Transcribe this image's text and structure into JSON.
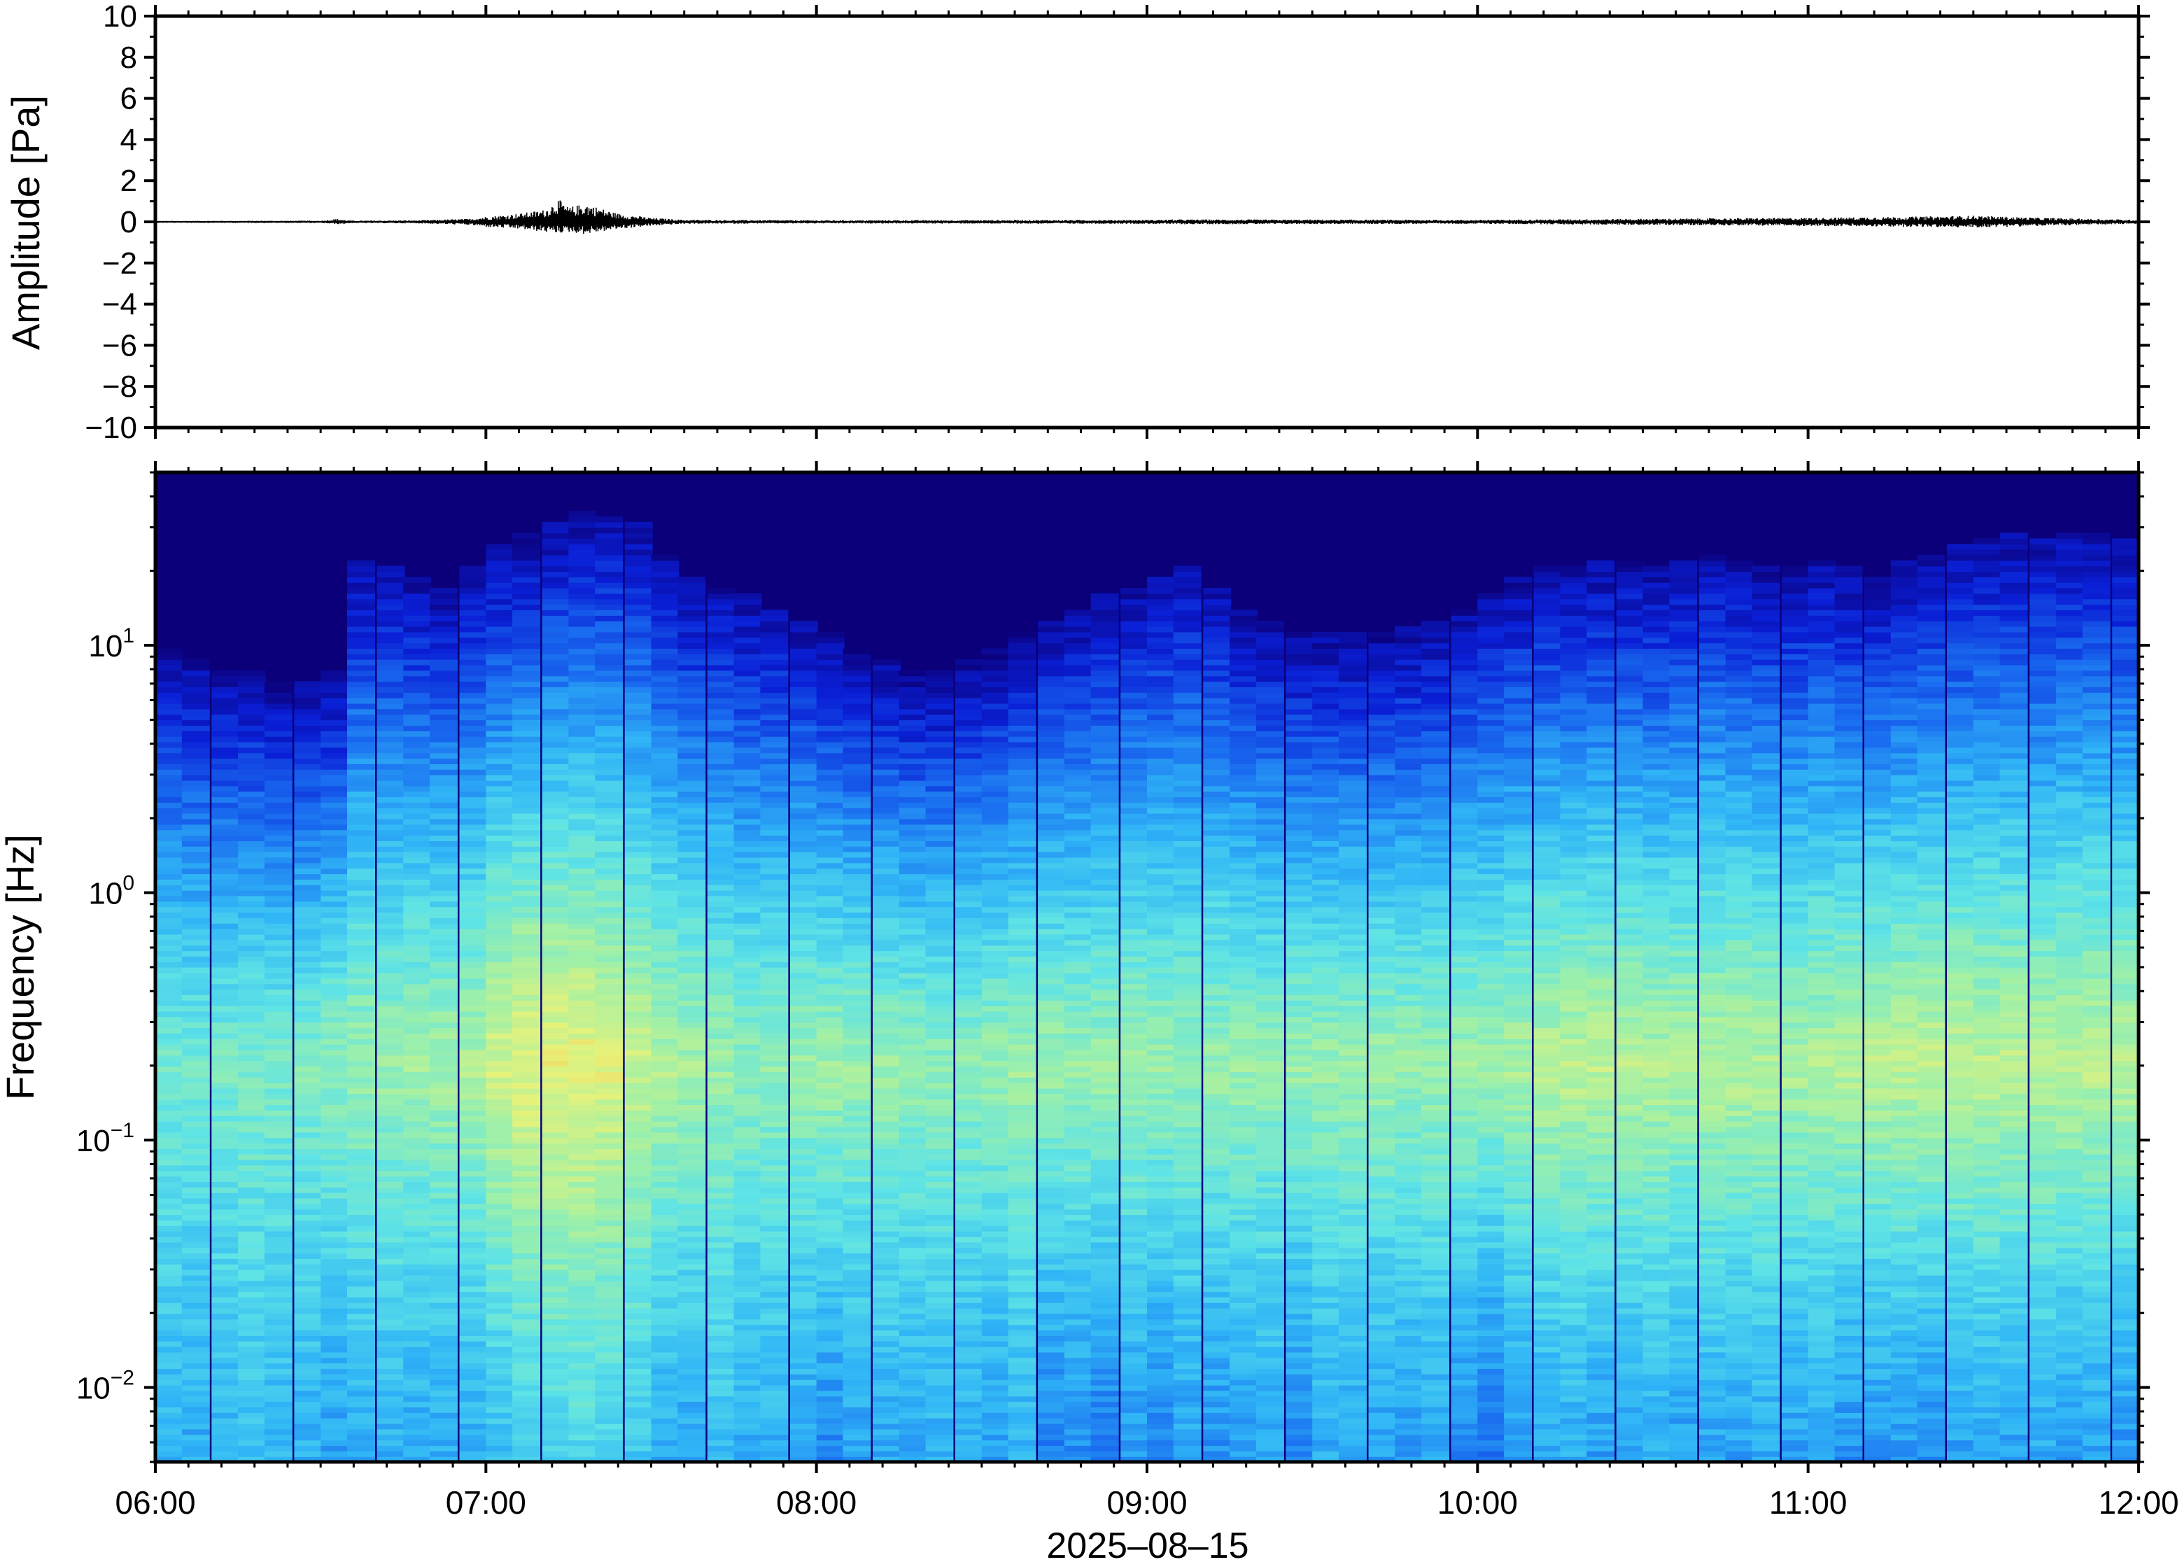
{
  "chart_data": [
    {
      "type": "line",
      "ylabel": "Amplitude [Pa]",
      "ylim": [
        -10,
        10
      ],
      "yticks": [
        10,
        8,
        6,
        4,
        2,
        0,
        -2,
        -4,
        -6,
        -8,
        -10
      ],
      "ytick_labels": [
        "10",
        "8",
        "6",
        "4",
        "2",
        "0",
        "−2",
        "−4",
        "−6",
        "−8",
        "−10"
      ],
      "xlim": [
        "2025-08-15 06:00",
        "2025-08-15 12:00"
      ],
      "series": [
        {
          "color": "#000000",
          "envelope": {
            "time_hours": [
              6.0,
              6.5,
              6.55,
              6.57,
              6.6,
              6.8,
              6.95,
              7.0,
              7.1,
              7.18,
              7.22,
              7.25,
              7.3,
              7.4,
              7.5,
              7.6,
              8.0,
              9.0,
              9.1,
              10.0,
              10.5,
              11.0,
              11.3,
              11.5,
              11.7,
              12.0
            ],
            "max_pa": [
              0.05,
              0.06,
              0.15,
              0.1,
              0.06,
              0.08,
              0.15,
              0.25,
              0.4,
              0.6,
              1.1,
              0.7,
              0.9,
              0.4,
              0.2,
              0.1,
              0.08,
              0.1,
              0.12,
              0.1,
              0.15,
              0.2,
              0.25,
              0.3,
              0.2,
              0.1
            ],
            "min_pa": [
              -0.05,
              -0.06,
              -0.12,
              -0.1,
              -0.06,
              -0.08,
              -0.15,
              -0.25,
              -0.35,
              -0.5,
              -0.55,
              -0.5,
              -0.6,
              -0.35,
              -0.2,
              -0.1,
              -0.08,
              -0.1,
              -0.12,
              -0.1,
              -0.15,
              -0.2,
              -0.25,
              -0.28,
              -0.2,
              -0.1
            ]
          }
        }
      ]
    },
    {
      "type": "heatmap",
      "ylabel": "Frequency [Hz]",
      "xlabel": "2025–08–15",
      "yscale": "log",
      "ylim_hz": [
        0.005,
        50
      ],
      "yticks_hz": [
        10,
        1,
        0.1,
        0.01
      ],
      "ytick_labels": [
        {
          "base": "10",
          "exp": "1"
        },
        {
          "base": "10",
          "exp": "0"
        },
        {
          "base": "10",
          "exp": "−1"
        },
        {
          "base": "10",
          "exp": "−2"
        }
      ],
      "x_ticks": [
        "06:00",
        "07:00",
        "08:00",
        "09:00",
        "10:00",
        "11:00",
        "12:00"
      ],
      "xlim": [
        "2025-08-15 06:00",
        "2025-08-15 12:00"
      ],
      "colormap": [
        "#0b007a",
        "#0a1fd6",
        "#1a6df0",
        "#30b6f6",
        "#5ee3e6",
        "#9ef0a8",
        "#e6f27a",
        "#f8c250",
        "#f08a3a"
      ],
      "colorscale_range_db": [
        0,
        100
      ],
      "time_columns_hours": [
        6.0,
        6.08,
        6.17,
        6.25,
        6.33,
        6.42,
        6.5,
        6.58,
        6.67,
        6.75,
        6.83,
        6.92,
        7.0,
        7.08,
        7.17,
        7.25,
        7.33,
        7.42,
        7.5,
        7.58,
        7.67,
        7.75,
        7.83,
        7.92,
        8.0,
        8.08,
        8.17,
        8.25,
        8.33,
        8.42,
        8.5,
        8.58,
        8.67,
        8.75,
        8.83,
        8.92,
        9.0,
        9.08,
        9.17,
        9.25,
        9.33,
        9.42,
        9.5,
        9.58,
        9.67,
        9.75,
        9.83,
        9.92,
        10.0,
        10.08,
        10.17,
        10.25,
        10.33,
        10.42,
        10.5,
        10.58,
        10.67,
        10.75,
        10.83,
        10.92,
        11.0,
        11.08,
        11.17,
        11.25,
        11.33,
        11.42,
        11.5,
        11.58,
        11.67,
        11.75,
        11.83,
        11.92
      ],
      "upper_edge_hz": [
        6,
        5.5,
        5,
        5,
        4.5,
        4.5,
        5,
        14,
        13,
        12,
        11,
        13,
        16,
        18,
        20,
        22,
        21,
        20,
        15,
        12,
        11,
        10,
        9,
        8,
        7,
        6,
        5.5,
        5,
        5,
        5.5,
        6,
        7,
        8,
        9,
        10,
        11,
        12,
        13,
        11,
        9,
        8,
        7,
        7,
        7,
        7,
        7.5,
        8,
        9,
        10,
        12,
        13,
        13,
        14,
        14,
        13,
        14,
        15,
        14,
        13,
        13,
        14,
        13,
        12,
        14,
        15,
        16,
        17,
        18,
        17,
        18,
        18,
        17
      ],
      "peak_band_hz": [
        0.15,
        0.25
      ],
      "peak_intensity_db": [
        55,
        55,
        56,
        57,
        57,
        58,
        60,
        62,
        62,
        63,
        64,
        65,
        72,
        75,
        76,
        76,
        74,
        70,
        66,
        64,
        62,
        60,
        60,
        62,
        63,
        62,
        62,
        61,
        60,
        60,
        62,
        63,
        63,
        62,
        62,
        63,
        62,
        61,
        62,
        62,
        61,
        62,
        62,
        63,
        63,
        62,
        62,
        63,
        63,
        65,
        67,
        68,
        68,
        67,
        66,
        66,
        67,
        67,
        66,
        65,
        66,
        67,
        68,
        68,
        69,
        69,
        68,
        68,
        67,
        68,
        68,
        67
      ],
      "low_freq_floor_db": [
        38,
        36,
        38,
        40,
        38,
        37,
        34,
        36,
        37,
        35,
        36,
        37,
        40,
        44,
        46,
        47,
        45,
        42,
        36,
        35,
        40,
        36,
        37,
        34,
        30,
        34,
        36,
        35,
        37,
        36,
        33,
        37,
        28,
        30,
        27,
        32,
        29,
        34,
        31,
        33,
        35,
        29,
        36,
        35,
        34,
        33,
        35,
        30,
        26,
        32,
        35,
        36,
        33,
        34,
        37,
        33,
        35,
        34,
        36,
        34,
        35,
        31,
        32,
        33,
        30,
        34,
        35,
        34,
        36,
        33,
        34,
        32
      ]
    }
  ]
}
